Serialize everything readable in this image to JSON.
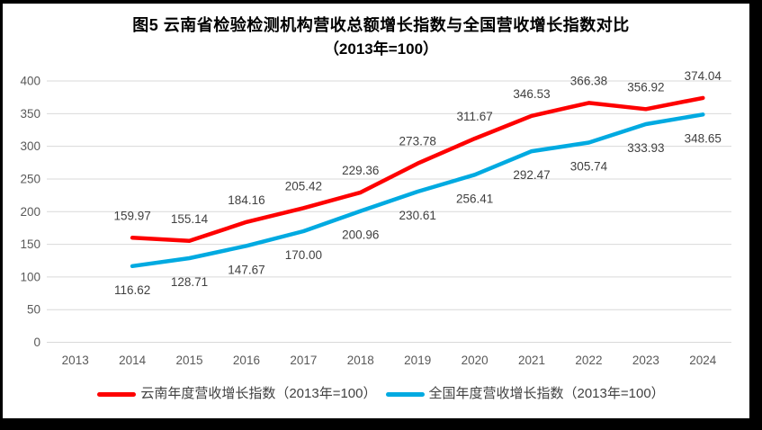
{
  "title": {
    "line1": "图5  云南省检验检测机构营收总额增长指数与全国营收增长指数对比",
    "line2": "（2013年=100）"
  },
  "colors": {
    "yunnan_red": "#fe0000",
    "national_blue": "#00aae1",
    "gridline": "#d9d9d9",
    "axis_text": "#595959",
    "data_label_text": "#404040",
    "frame": "#000000",
    "background": "#ffffff"
  },
  "chart_data": {
    "type": "line",
    "title": "图5 云南省检验检测机构营收总额增长指数与全国营收增长指数对比（2013年=100）",
    "x": [
      2013,
      2014,
      2015,
      2016,
      2017,
      2018,
      2019,
      2020,
      2021,
      2022,
      2023,
      2024
    ],
    "series": [
      {
        "id": "yunnan",
        "name": "云南年度营收增长指数（2013年=100）",
        "color": "#fe0000",
        "values": [
          null,
          159.97,
          155.14,
          184.16,
          205.42,
          229.36,
          273.78,
          311.67,
          346.53,
          366.38,
          356.92,
          374.04
        ]
      },
      {
        "id": "national",
        "name": "全国年度营收增长指数（2013年=100）",
        "color": "#00aae1",
        "values": [
          null,
          116.62,
          128.71,
          147.67,
          170.0,
          200.96,
          230.61,
          256.41,
          292.47,
          305.74,
          333.93,
          348.65
        ]
      }
    ],
    "ylim": [
      0,
      400
    ],
    "ytick_step": 50,
    "yticks": [
      0,
      50,
      100,
      150,
      200,
      250,
      300,
      350,
      400
    ],
    "grid": true,
    "data_labels": true,
    "data_label_decimals": 2,
    "legend_position": "bottom"
  }
}
